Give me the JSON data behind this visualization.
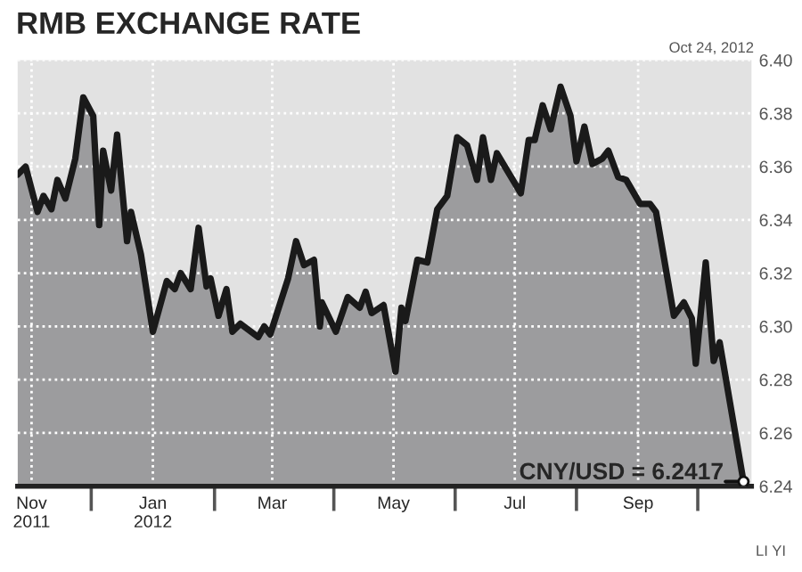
{
  "chart_data": {
    "type": "area",
    "title": "RMB EXCHANGE RATE",
    "annotations": [
      "Oct 24, 2012",
      {
        "text": "CNY/USD = 6.2417",
        "x": "2012-10-24",
        "y": 6.2417
      },
      "LI YI"
    ],
    "series": [
      {
        "color": "#9c9c9e",
        "x": [
          "2011-10-25",
          "2011-10-29",
          "2011-11-04",
          "2011-11-07",
          "2011-11-11",
          "2011-11-14",
          "2011-11-18",
          "2011-11-23",
          "2011-11-27",
          "2011-12-02",
          "2011-12-05",
          "2011-12-07",
          "2011-12-11",
          "2011-12-14",
          "2011-12-19",
          "2011-12-21",
          "2011-12-26",
          "2012-01-01",
          "2012-01-08",
          "2012-01-12",
          "2012-01-15",
          "2012-01-20",
          "2012-01-24",
          "2012-01-28",
          "2012-01-30",
          "2012-02-03",
          "2012-02-07",
          "2012-02-10",
          "2012-02-14",
          "2012-02-23",
          "2012-02-26",
          "2012-02-29",
          "2012-03-09",
          "2012-03-13",
          "2012-03-17",
          "2012-03-22",
          "2012-03-25",
          "2012-03-26",
          "2012-04-02",
          "2012-04-08",
          "2012-04-14",
          "2012-04-17",
          "2012-04-20",
          "2012-04-26",
          "2012-05-02",
          "2012-05-05",
          "2012-05-07",
          "2012-05-13",
          "2012-05-18",
          "2012-05-23",
          "2012-05-28",
          "2012-06-02",
          "2012-06-07",
          "2012-06-12",
          "2012-06-15",
          "2012-06-19",
          "2012-06-22",
          "2012-07-04",
          "2012-07-08",
          "2012-07-11",
          "2012-07-15",
          "2012-07-19",
          "2012-07-24",
          "2012-07-29",
          "2012-08-01",
          "2012-08-05",
          "2012-08-09",
          "2012-08-14",
          "2012-08-17",
          "2012-08-22",
          "2012-08-26",
          "2012-09-02",
          "2012-09-07",
          "2012-09-10",
          "2012-09-19",
          "2012-09-24",
          "2012-09-28",
          "2012-09-30",
          "2012-10-05",
          "2012-10-09",
          "2012-10-12",
          "2012-10-24"
        ],
        "values": [
          6.357,
          6.36,
          6.343,
          6.349,
          6.344,
          6.355,
          6.348,
          6.363,
          6.386,
          6.379,
          6.338,
          6.366,
          6.351,
          6.372,
          6.332,
          6.343,
          6.327,
          6.298,
          6.317,
          6.314,
          6.32,
          6.314,
          6.337,
          6.315,
          6.318,
          6.304,
          6.314,
          6.298,
          6.301,
          6.296,
          6.3,
          6.297,
          6.318,
          6.332,
          6.323,
          6.325,
          6.3,
          6.309,
          6.298,
          6.311,
          6.307,
          6.313,
          6.305,
          6.308,
          6.283,
          6.307,
          6.302,
          6.325,
          6.324,
          6.344,
          6.349,
          6.371,
          6.368,
          6.355,
          6.371,
          6.355,
          6.365,
          6.35,
          6.37,
          6.37,
          6.383,
          6.374,
          6.39,
          6.379,
          6.362,
          6.375,
          6.361,
          6.363,
          6.366,
          6.356,
          6.355,
          6.346,
          6.346,
          6.343,
          6.304,
          6.309,
          6.303,
          6.286,
          6.324,
          6.287,
          6.294,
          6.2417
        ]
      }
    ],
    "xlim": [
      "2011-10-25",
      "2012-10-28"
    ],
    "xticks": [
      {
        "value": "2011-11-01",
        "label": "Nov\n2011"
      },
      {
        "value": "2011-12-01",
        "label": null
      },
      {
        "value": "2012-01-01",
        "label": "Jan\n2012"
      },
      {
        "value": "2012-02-01",
        "label": null
      },
      {
        "value": "2012-03-01",
        "label": "Mar"
      },
      {
        "value": "2012-04-01",
        "label": null
      },
      {
        "value": "2012-05-01",
        "label": "May"
      },
      {
        "value": "2012-06-01",
        "label": null
      },
      {
        "value": "2012-07-01",
        "label": "Jul"
      },
      {
        "value": "2012-08-01",
        "label": null
      },
      {
        "value": "2012-09-01",
        "label": "Sep"
      },
      {
        "value": "2012-10-01",
        "label": null
      }
    ],
    "ylim": [
      6.24,
      6.4
    ],
    "yticks": [
      {
        "value": 6.24,
        "label": "6.24"
      },
      {
        "value": 6.26,
        "label": "6.26"
      },
      {
        "value": 6.28,
        "label": "6.28"
      },
      {
        "value": 6.3,
        "label": "6.30"
      },
      {
        "value": 6.32,
        "label": "6.32"
      },
      {
        "value": 6.34,
        "label": "6.34"
      },
      {
        "value": 6.36,
        "label": "6.36"
      },
      {
        "value": 6.38,
        "label": "6.38"
      },
      {
        "value": 6.4,
        "label": "6.40"
      }
    ],
    "grid": true
  }
}
